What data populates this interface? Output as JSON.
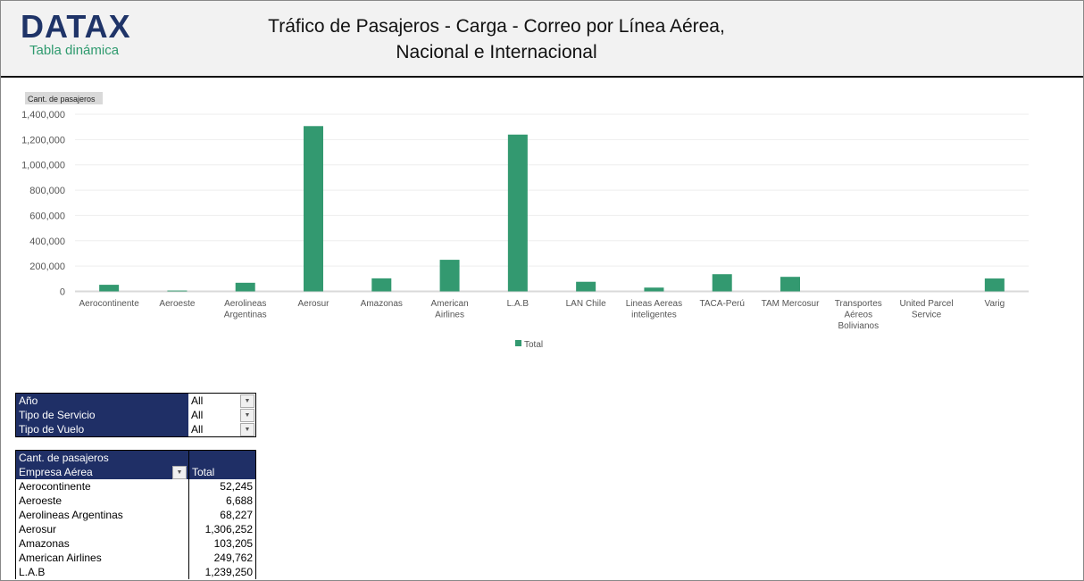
{
  "header": {
    "logo": "DATAX",
    "subtitle": "Tabla dinámica",
    "title_line1": "Tráfico de Pasajeros - Carga - Correo por Línea Aérea,",
    "title_line2": "Nacional e Internacional"
  },
  "chart_data": {
    "type": "bar",
    "field_button": "Cant. de pasajeros",
    "categories": [
      "Aerocontinente",
      "Aeroeste",
      "Aerolineas Argentinas",
      "Aerosur",
      "Amazonas",
      "American Airlines",
      "L.A.B",
      "LAN Chile",
      "Lineas Aereas inteligentes",
      "TACA-Perú",
      "TAM Mercosur",
      "Transportes Aéreos Bolivianos",
      "United Parcel Service",
      "Varig"
    ],
    "series": [
      {
        "name": "Total",
        "values": [
          52245,
          6688,
          68227,
          1306252,
          103205,
          249762,
          1239250,
          76000,
          30000,
          136000,
          115000,
          0,
          0,
          102000
        ]
      }
    ],
    "yticks": [
      "0",
      "200,000",
      "400,000",
      "600,000",
      "800,000",
      "1,000,000",
      "1,200,000",
      "1,400,000"
    ],
    "ylim": [
      0,
      1400000
    ],
    "grid": true,
    "legend": "bottom",
    "color": "#339970"
  },
  "slicers": [
    {
      "label": "Año",
      "value": "All"
    },
    {
      "label": "Tipo de Servicio",
      "value": "All"
    },
    {
      "label": "Tipo de Vuelo",
      "value": "All"
    }
  ],
  "pivot": {
    "measure": "Cant. de pasajeros",
    "row_header": "Empresa Aérea",
    "col_header": "Total",
    "rows": [
      {
        "name": "Aerocontinente",
        "total": "52,245"
      },
      {
        "name": "Aeroeste",
        "total": "6,688"
      },
      {
        "name": "Aerolineas Argentinas",
        "total": "68,227"
      },
      {
        "name": "Aerosur",
        "total": "1,306,252"
      },
      {
        "name": "Amazonas",
        "total": "103,205"
      },
      {
        "name": "American Airlines",
        "total": "249,762"
      },
      {
        "name": "L.A.B",
        "total": "1,239,250"
      }
    ]
  }
}
